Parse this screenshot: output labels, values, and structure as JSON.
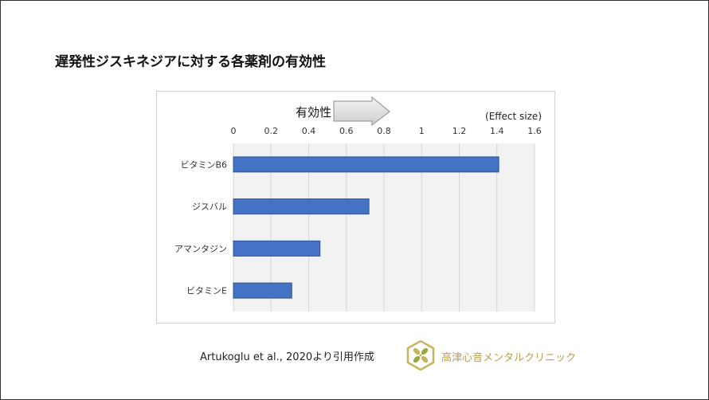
{
  "slide": {
    "title": "遅発性ジスキネジアに対する各薬剤の有効性",
    "citation": "Artukoglu  et al., 2020より引用作成",
    "clinic_name": "高津心音メンタルクリニック",
    "colors": {
      "bar_fill": "#4472c4",
      "bar_stroke": "#2f528f",
      "plot_bg": "#f2f2f2",
      "logo_gold": "#c8b45a",
      "logo_green": "#9aaa3a"
    }
  },
  "chart_data": {
    "type": "bar",
    "orientation": "horizontal",
    "title": "",
    "xlabel": "(Effect size)",
    "ylabel": "",
    "arrow_label": "有効性",
    "xlim": [
      0,
      1.6
    ],
    "x_ticks": [
      0,
      0.2,
      0.4,
      0.6,
      0.8,
      1,
      1.2,
      1.4,
      1.6
    ],
    "tick_labels": [
      "0",
      "0.2",
      "0.4",
      "0.6",
      "0.8",
      "1",
      "1.2",
      "1.4",
      "1.6"
    ],
    "categories": [
      "ビタミンB6",
      "ジスバル",
      "アマンタジン",
      "ビタミンE"
    ],
    "values": [
      1.41,
      0.72,
      0.46,
      0.31
    ],
    "grid": true,
    "axis_position": "top"
  }
}
